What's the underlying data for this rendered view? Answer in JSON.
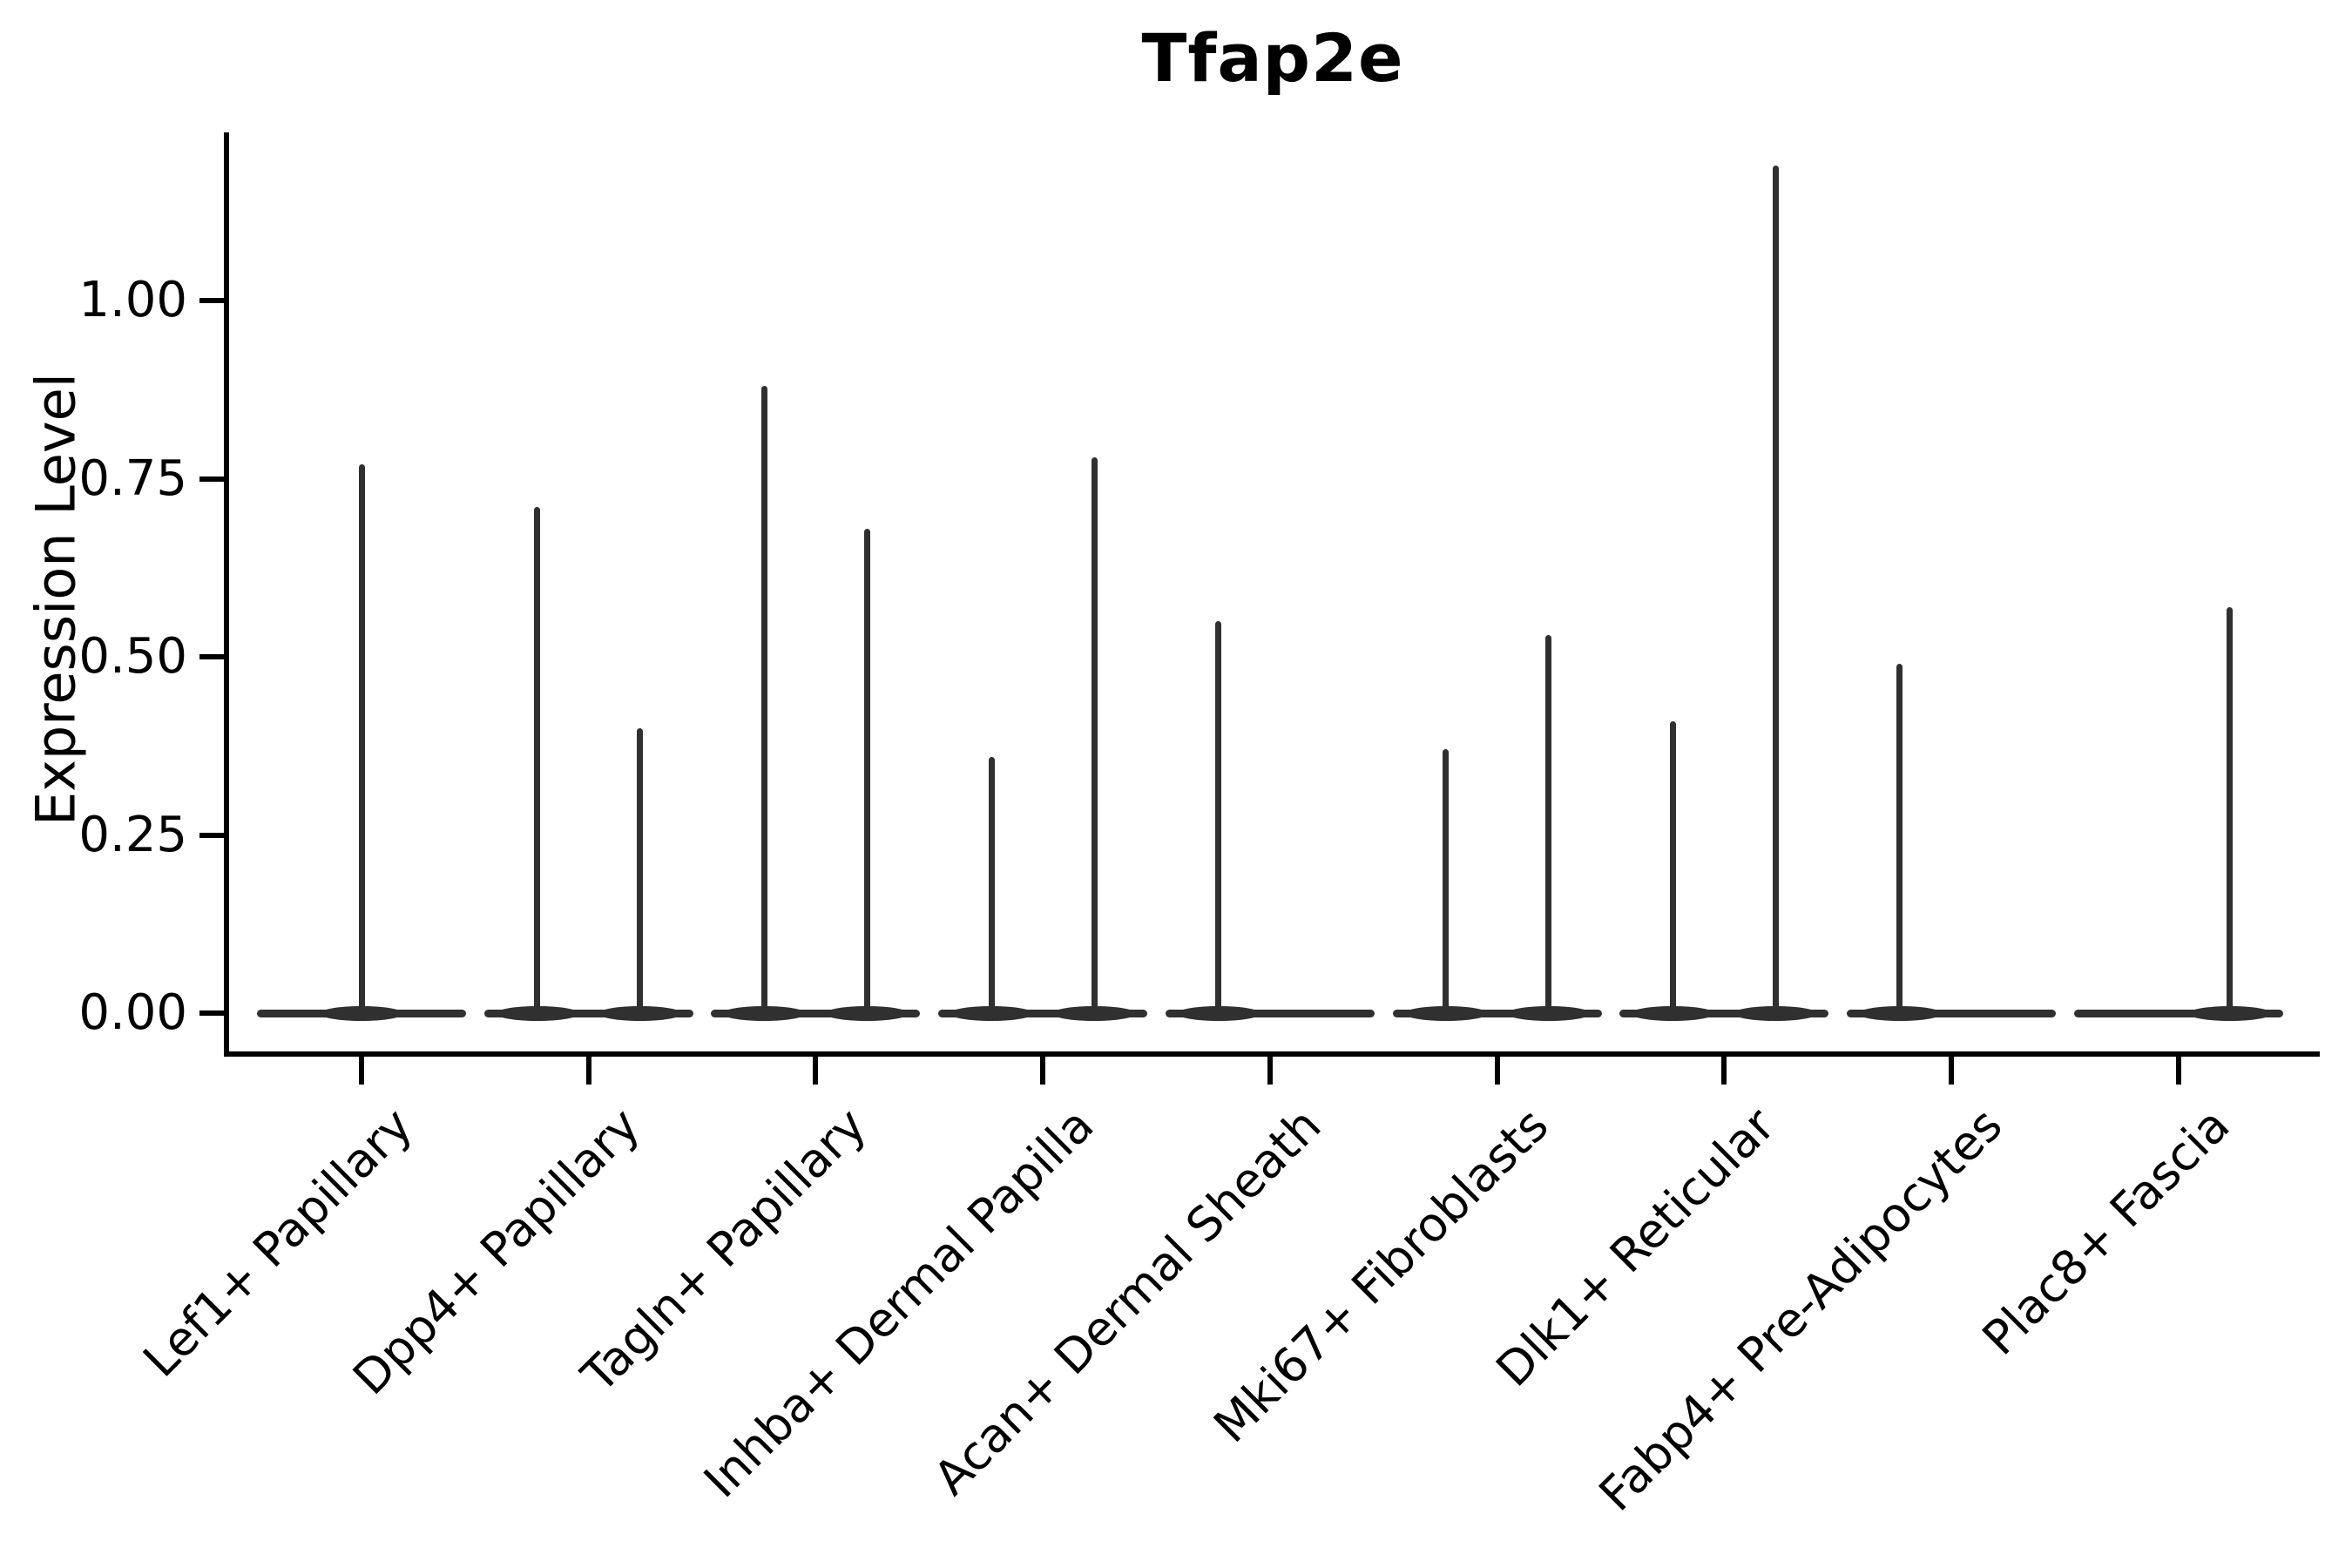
{
  "figure": {
    "background": "#ffffff"
  },
  "chart_data": {
    "type": "violin",
    "title": "Tfap2e",
    "ylabel": "Expression Level",
    "xlabel": "",
    "yticks": [
      "0.00",
      "0.25",
      "0.50",
      "0.75",
      "1.00"
    ],
    "ytick_values": [
      0.0,
      0.25,
      0.5,
      0.75,
      1.0
    ],
    "ylim": [
      0,
      1.24
    ],
    "grid": false,
    "legend": null,
    "baseline_value": 0.0,
    "categories": [
      "Lef1+ Papillary",
      "Dpp4+ Papillary",
      "Tagln+ Papillary",
      "Inhba+ Dermal Papilla",
      "Acan+ Dermal Sheath",
      "Mki67+ Fibroblasts",
      "Dlk1+ Reticular",
      "Fabp4+ Pre-Adipocytes",
      "Plac8+ Fascia"
    ],
    "violins": [
      {
        "category": "Lef1+ Papillary",
        "spikes": [
          {
            "slot": "center",
            "max": 0.77
          }
        ]
      },
      {
        "category": "Dpp4+ Papillary",
        "spikes": [
          {
            "slot": "left",
            "max": 0.71
          },
          {
            "slot": "right",
            "max": 0.4
          }
        ]
      },
      {
        "category": "Tagln+ Papillary",
        "spikes": [
          {
            "slot": "left",
            "max": 0.88
          },
          {
            "slot": "right",
            "max": 0.68
          }
        ]
      },
      {
        "category": "Inhba+ Dermal Papilla",
        "spikes": [
          {
            "slot": "left",
            "max": 0.36
          },
          {
            "slot": "right",
            "max": 0.78
          }
        ]
      },
      {
        "category": "Acan+ Dermal Sheath",
        "spikes": [
          {
            "slot": "left",
            "max": 0.55
          }
        ]
      },
      {
        "category": "Mki67+ Fibroblasts",
        "spikes": [
          {
            "slot": "left",
            "max": 0.37
          },
          {
            "slot": "right",
            "max": 0.53
          }
        ]
      },
      {
        "category": "Dlk1+ Reticular",
        "spikes": [
          {
            "slot": "left",
            "max": 0.41
          },
          {
            "slot": "right",
            "max": 1.19
          }
        ]
      },
      {
        "category": "Fabp4+ Pre-Adipocytes",
        "spikes": [
          {
            "slot": "left",
            "max": 0.49
          }
        ]
      },
      {
        "category": "Plac8+ Fascia",
        "spikes": [
          {
            "slot": "right",
            "max": 0.57
          }
        ]
      }
    ],
    "colors": {
      "violin_ink": "#303030",
      "axis": "#000000",
      "text": "#000000"
    }
  }
}
